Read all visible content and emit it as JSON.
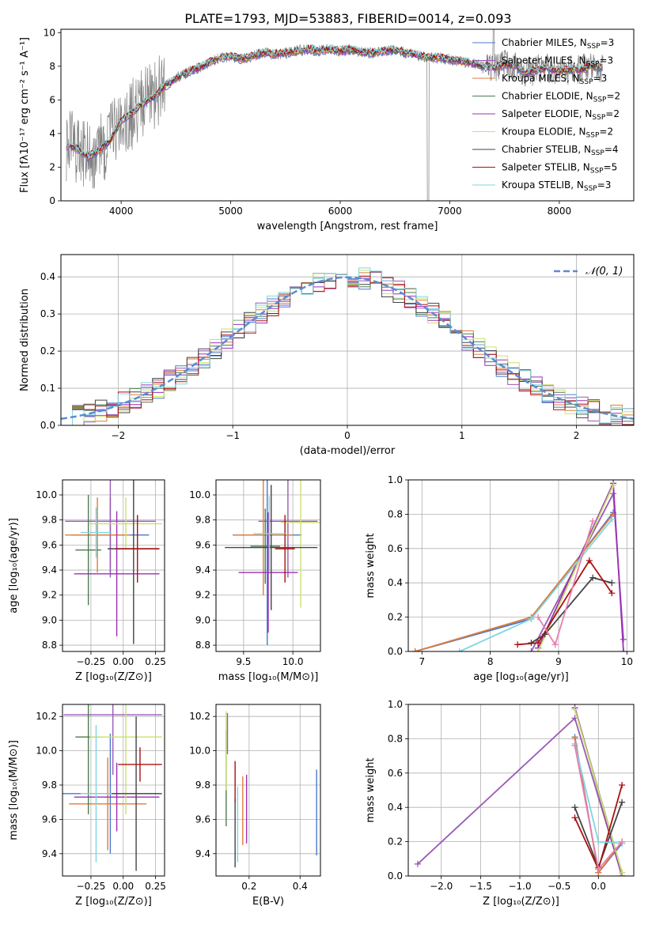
{
  "title": "PLATE=1793, MJD=53883, FIBERID=0014, z=0.093",
  "colors": {
    "gray": "#808080",
    "models": [
      "#4878cf",
      "#9b59b6",
      "#e07b39",
      "#4e7a4e",
      "#9b30b6",
      "#c8e070",
      "#444444",
      "#aa1111",
      "#7fd6e0"
    ],
    "normal_curve": "#5b8bd6"
  },
  "chart_data": [
    {
      "id": "spectrum",
      "type": "line",
      "xlabel": "wavelength [Angstrom, rest frame]",
      "ylabel": "Flux [fλ10⁻¹⁷ erg cm⁻² s⁻¹ A⁻¹]",
      "xlim": [
        3450,
        8680
      ],
      "ylim": [
        0,
        10.2
      ],
      "xticks": [
        "4000",
        "5000",
        "6000",
        "7000",
        "8000"
      ],
      "yticks": [
        "0",
        "2",
        "4",
        "6",
        "8",
        "10"
      ],
      "continuum": {
        "x": [
          3500,
          3600,
          3700,
          3800,
          3900,
          4000,
          4100,
          4200,
          4300,
          4400,
          4500,
          4600,
          4700,
          4800,
          4900,
          5000,
          5100,
          5200,
          5300,
          5400,
          5500,
          5600,
          5700,
          5800,
          5900,
          6000,
          6100,
          6200,
          6300,
          6400,
          6500,
          6600,
          6700,
          6800,
          6900,
          7000,
          7100,
          7200,
          7300,
          7400,
          7500,
          7600,
          7700,
          7800,
          7900,
          8000,
          8100,
          8200,
          8300,
          8400
        ],
        "y": [
          3.3,
          3.1,
          2.6,
          3.0,
          3.6,
          4.8,
          5.2,
          5.8,
          6.2,
          6.8,
          7.3,
          7.6,
          7.9,
          8.2,
          8.5,
          8.6,
          8.4,
          8.6,
          8.8,
          8.7,
          8.8,
          8.9,
          9.0,
          8.9,
          9.0,
          8.9,
          9.0,
          8.8,
          8.8,
          8.9,
          9.0,
          8.8,
          8.7,
          8.5,
          8.5,
          8.4,
          8.3,
          8.2,
          8.0,
          7.9,
          8.1,
          8.0,
          7.6,
          7.8,
          7.9,
          7.7,
          7.8,
          7.8,
          8.0,
          7.9
        ]
      },
      "legend": [
        {
          "name": "Chabrier MILES, N",
          "sub": "SSP",
          "tail": "=3"
        },
        {
          "name": "Salpeter MILES, N",
          "sub": "SSP",
          "tail": "=3"
        },
        {
          "name": "Kroupa MILES, N",
          "sub": "SSP",
          "tail": "=3"
        },
        {
          "name": "Chabrier ELODIE, N",
          "sub": "SSP",
          "tail": "=2"
        },
        {
          "name": "Salpeter ELODIE, N",
          "sub": "SSP",
          "tail": "=2"
        },
        {
          "name": "Kroupa ELODIE, N",
          "sub": "SSP",
          "tail": "=2"
        },
        {
          "name": "Chabrier STELIB, N",
          "sub": "SSP",
          "tail": "=4"
        },
        {
          "name": "Salpeter STELIB, N",
          "sub": "SSP",
          "tail": "=5"
        },
        {
          "name": "Kroupa STELIB, N",
          "sub": "SSP",
          "tail": "=3"
        }
      ]
    },
    {
      "id": "residuals",
      "type": "histogram",
      "xlabel": "(data-model)/error",
      "ylabel": "Normed distribution",
      "xlim": [
        -2.5,
        2.5
      ],
      "ylim": [
        0,
        0.46
      ],
      "xticks": [
        "−2",
        "−1",
        "0",
        "1",
        "2"
      ],
      "yticks": [
        "0.0",
        "0.1",
        "0.2",
        "0.3",
        "0.4"
      ],
      "legend": "𝒩(0, 1)",
      "bin_width": 0.1,
      "bin_start": -2.5
    },
    {
      "id": "age_vs_Z",
      "type": "errorbar",
      "xlabel": "Z [log₁₀(Z/Z⊙)]",
      "ylabel": "age  [log₁₀(age/yr)]",
      "xlim": [
        -0.47,
        0.32
      ],
      "ylim": [
        8.75,
        10.12
      ],
      "xticks": [
        "−0.25",
        "0.00",
        "0.25"
      ],
      "yticks": [
        "8.8",
        "9.0",
        "9.2",
        "9.4",
        "9.6",
        "9.8",
        "10.0"
      ],
      "points": [
        {
          "x": -0.1,
          "y": 9.68,
          "xerr": 0.3,
          "yerr": 0.3
        },
        {
          "x": -0.1,
          "y": 9.79,
          "xerr": 0.35,
          "yerr": 0.45
        },
        {
          "x": -0.2,
          "y": 9.68,
          "xerr": 0.25,
          "yerr": 0.3
        },
        {
          "x": -0.27,
          "y": 9.56,
          "xerr": 0.1,
          "yerr": 0.44
        },
        {
          "x": -0.05,
          "y": 9.37,
          "xerr": 0.33,
          "yerr": 0.5
        },
        {
          "x": 0.02,
          "y": 9.77,
          "xerr": 0.28,
          "yerr": 0.21
        },
        {
          "x": 0.08,
          "y": 9.57,
          "xerr": 0.2,
          "yerr": 0.76
        },
        {
          "x": 0.11,
          "y": 9.57,
          "xerr": 0.17,
          "yerr": 0.27
        },
        {
          "x": -0.21,
          "y": 9.7,
          "xerr": 0.12,
          "yerr": 0.2
        }
      ]
    },
    {
      "id": "age_vs_mass",
      "type": "errorbar",
      "xlabel": "mass [log₁₀(M/M⊙)]",
      "ylabel": "",
      "xlim": [
        9.22,
        10.28
      ],
      "ylim": [
        8.75,
        10.12
      ],
      "xticks": [
        "9.5",
        "10.0"
      ],
      "yticks": [
        "8.8",
        "9.0",
        "9.2",
        "9.4",
        "9.6",
        "9.8",
        "10.0"
      ],
      "points": [
        {
          "x": 9.74,
          "y": 9.68,
          "xerr": 0.35,
          "yerr": 0.88
        },
        {
          "x": 9.95,
          "y": 9.79,
          "xerr": 0.3,
          "yerr": 0.45
        },
        {
          "x": 9.7,
          "y": 9.68,
          "xerr": 0.3,
          "yerr": 0.48
        },
        {
          "x": 9.72,
          "y": 9.59,
          "xerr": 0.15,
          "yerr": 0.3
        },
        {
          "x": 9.75,
          "y": 9.38,
          "xerr": 0.3,
          "yerr": 0.48
        },
        {
          "x": 10.08,
          "y": 9.78,
          "xerr": 0.2,
          "yerr": 0.68
        },
        {
          "x": 9.78,
          "y": 9.58,
          "xerr": 0.47,
          "yerr": 0.5
        },
        {
          "x": 9.92,
          "y": 9.57,
          "xerr": 0.1,
          "yerr": 0.27
        },
        {
          "x": 9.76,
          "y": 9.69,
          "xerr": 0.16,
          "yerr": 0.3
        }
      ]
    },
    {
      "id": "mass_weight_vs_age",
      "type": "line",
      "xlabel": "age  [log₁₀(age/yr)]",
      "ylabel": "mass weight",
      "xlim": [
        6.8,
        10.1
      ],
      "ylim": [
        0,
        1
      ],
      "xticks": [
        "7",
        "8",
        "9",
        "10"
      ],
      "yticks": [
        "0.0",
        "0.2",
        "0.4",
        "0.6",
        "0.8",
        "1.0"
      ],
      "series": [
        {
          "x": [
            6.9,
            8.6,
            9.8
          ],
          "y": [
            0.0,
            0.19,
            0.81
          ]
        },
        {
          "x": [
            8.6,
            9.8,
            9.95
          ],
          "y": [
            0.0,
            0.92,
            0.07
          ]
        },
        {
          "x": [
            6.9,
            8.6,
            9.8
          ],
          "y": [
            0.0,
            0.2,
            0.8
          ]
        },
        {
          "x": [
            8.7,
            9.8
          ],
          "y": [
            0.02,
            0.98
          ]
        },
        {
          "x": [
            8.7,
            9.8,
            9.95
          ],
          "y": [
            0.02,
            0.98,
            0.0
          ]
        },
        {
          "x": [
            8.7,
            9.8
          ],
          "y": [
            0.0,
            0.97
          ]
        },
        {
          "x": [
            8.6,
            8.8,
            9.5,
            9.78
          ],
          "y": [
            0.05,
            0.1,
            0.43,
            0.4
          ]
        },
        {
          "x": [
            8.4,
            8.7,
            9.45,
            9.78
          ],
          "y": [
            0.04,
            0.05,
            0.53,
            0.34
          ]
        },
        {
          "x": [
            7.55,
            8.6,
            9.78
          ],
          "y": [
            0.0,
            0.19,
            0.77
          ]
        }
      ],
      "pink": {
        "x": [
          8.7,
          8.95,
          9.5
        ],
        "y": [
          0.2,
          0.04,
          0.76
        ]
      }
    },
    {
      "id": "mass_vs_Z",
      "type": "errorbar",
      "xlabel": "Z [log₁₀(Z/Z⊙)]",
      "ylabel": "mass [log₁₀(M/M⊙)]",
      "xlim": [
        -0.47,
        0.32
      ],
      "ylim": [
        9.27,
        10.27
      ],
      "xticks": [
        "−0.25",
        "0.00",
        "0.25"
      ],
      "yticks": [
        "9.4",
        "9.6",
        "9.8",
        "10.0",
        "10.2"
      ],
      "points": [
        {
          "x": -0.1,
          "y": 9.75,
          "xerr": 0.38,
          "yerr": 0.35
        },
        {
          "x": -0.08,
          "y": 10.21,
          "xerr": 0.38,
          "yerr": 0.35
        },
        {
          "x": -0.12,
          "y": 9.69,
          "xerr": 0.3,
          "yerr": 0.27
        },
        {
          "x": -0.27,
          "y": 10.08,
          "xerr": 0.1,
          "yerr": 0.45
        },
        {
          "x": -0.05,
          "y": 9.73,
          "xerr": 0.33,
          "yerr": 0.2
        },
        {
          "x": 0.02,
          "y": 10.08,
          "xerr": 0.28,
          "yerr": 0.45
        },
        {
          "x": 0.1,
          "y": 9.75,
          "xerr": 0.2,
          "yerr": 0.45
        },
        {
          "x": 0.13,
          "y": 9.92,
          "xerr": 0.17,
          "yerr": 0.1
        },
        {
          "x": -0.21,
          "y": 9.75,
          "xerr": 0.12,
          "yerr": 0.4
        }
      ]
    },
    {
      "id": "mass_vs_ebv",
      "type": "errorbar",
      "xlabel": "E(B-V)",
      "ylabel": "",
      "xlim": [
        0.07,
        0.48
      ],
      "ylim": [
        9.27,
        10.27
      ],
      "xticks": [
        "0.2",
        "0.4"
      ],
      "yticks": [
        "9.4",
        "9.6",
        "9.8",
        "10.0",
        "10.2"
      ],
      "points": [
        {
          "x": 0.465,
          "y": 9.64,
          "xerr": 0,
          "yerr": 0.25
        },
        {
          "x": 0.115,
          "y": 10.1,
          "xerr": 0,
          "yerr": 0.12
        },
        {
          "x": 0.175,
          "y": 9.65,
          "xerr": 0,
          "yerr": 0.2
        },
        {
          "x": 0.11,
          "y": 9.84,
          "xerr": 0,
          "yerr": 0.28
        },
        {
          "x": 0.19,
          "y": 9.66,
          "xerr": 0,
          "yerr": 0.2
        },
        {
          "x": 0.11,
          "y": 10.0,
          "xerr": 0,
          "yerr": 0.23
        },
        {
          "x": 0.145,
          "y": 9.52,
          "xerr": 0,
          "yerr": 0.2
        },
        {
          "x": 0.145,
          "y": 9.82,
          "xerr": 0,
          "yerr": 0.12
        },
        {
          "x": 0.155,
          "y": 9.57,
          "xerr": 0,
          "yerr": 0.22
        }
      ]
    },
    {
      "id": "mass_weight_vs_Z",
      "type": "line",
      "xlabel": "Z [log₁₀(Z/Z⊙)]",
      "ylabel": "mass weight",
      "xlim": [
        -2.42,
        0.45
      ],
      "ylim": [
        0,
        1
      ],
      "xticks": [
        "−2.0",
        "−1.5",
        "−1.0",
        "−0.5",
        "0.0"
      ],
      "yticks": [
        "0.0",
        "0.2",
        "0.4",
        "0.6",
        "0.8",
        "1.0"
      ],
      "series": [
        {
          "x": [
            -0.3,
            0.0,
            0.3
          ],
          "y": [
            0.81,
            0.02,
            0.19
          ]
        },
        {
          "x": [
            -2.3,
            -0.3,
            0.3
          ],
          "y": [
            0.07,
            0.92,
            0.0
          ]
        },
        {
          "x": [
            -0.3,
            0.0,
            0.3
          ],
          "y": [
            0.8,
            0.02,
            0.2
          ]
        },
        {
          "x": [
            -0.3,
            0.3
          ],
          "y": [
            0.98,
            0.02
          ]
        },
        {
          "x": [
            -0.3,
            0.3
          ],
          "y": [
            0.98,
            0.0
          ]
        },
        {
          "x": [
            -0.3,
            0.3
          ],
          "y": [
            0.97,
            0.02
          ]
        },
        {
          "x": [
            -0.3,
            0.0,
            0.3
          ],
          "y": [
            0.4,
            0.05,
            0.43
          ]
        },
        {
          "x": [
            -0.3,
            0.0,
            0.3
          ],
          "y": [
            0.34,
            0.04,
            0.53
          ]
        },
        {
          "x": [
            -0.3,
            0.0,
            0.3
          ],
          "y": [
            0.77,
            0.2,
            0.19
          ]
        }
      ],
      "pink": {
        "x": [
          -0.3,
          0.0,
          0.3
        ],
        "y": [
          0.76,
          0.04,
          0.2
        ]
      }
    }
  ]
}
